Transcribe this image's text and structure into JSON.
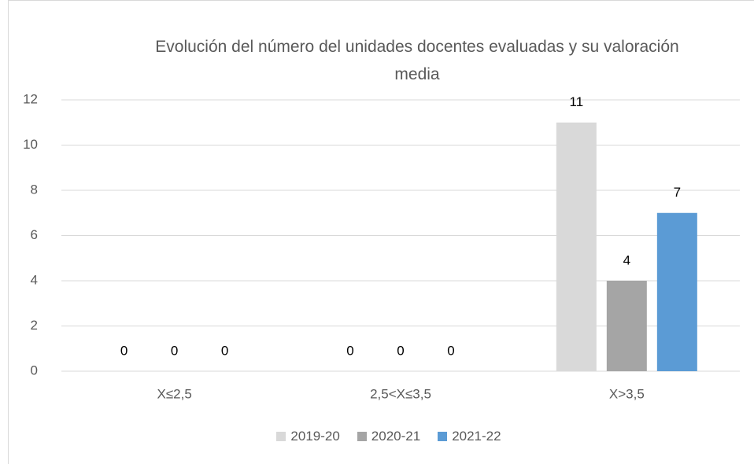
{
  "chart_data": {
    "type": "bar",
    "title": "Evolución del número del unidades docentes evaluadas y su valoración media",
    "categories": [
      "X≤2,5",
      "2,5<X≤3,5",
      "X>3,5"
    ],
    "series": [
      {
        "name": "2019-20",
        "color": "#d9d9d9",
        "values": [
          0,
          0,
          11
        ]
      },
      {
        "name": "2020-21",
        "color": "#a5a5a5",
        "values": [
          0,
          0,
          4
        ]
      },
      {
        "name": "2021-22",
        "color": "#5b9bd5",
        "values": [
          0,
          0,
          7
        ]
      }
    ],
    "ylim": [
      0,
      12
    ],
    "yticks": [
      0,
      2,
      4,
      6,
      8,
      10,
      12
    ],
    "grid": true,
    "legend": "bottom"
  }
}
